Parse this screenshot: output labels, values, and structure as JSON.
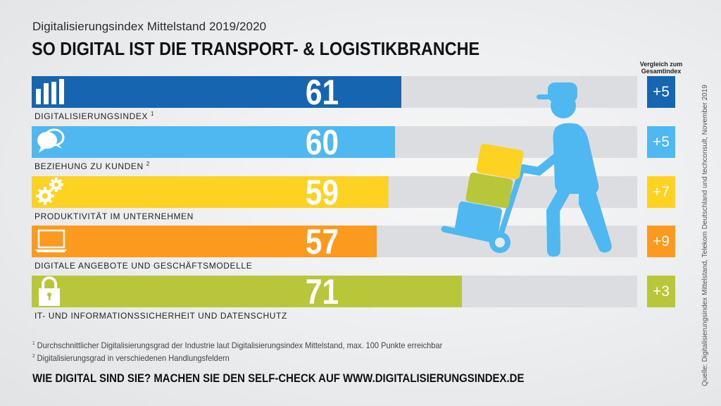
{
  "subtitle": "Digitalisierungsindex Mittelstand 2019/2020",
  "title": "SO DIGITAL IST DIE TRANSPORT- &  LOGISTIKBRANCHE",
  "comparison_header": "Vergleich zum Gesamtindex",
  "chart_data": {
    "type": "bar",
    "orientation": "horizontal",
    "xlim": [
      0,
      100
    ],
    "categories": [
      "DIGITALISIERUNGSINDEX",
      "BEZIEHUNG ZU KUNDEN",
      "PRODUKTIVITÄT IM UNTERNEHMEN",
      "DIGITALE ANGEBOTE UND GESCHÄFTSMODELLE",
      "IT- UND INFORMATIONSSICHERHEIT UND DATENSCHUTZ"
    ],
    "footnote_marks": [
      "1",
      "2",
      "",
      "",
      ""
    ],
    "values": [
      61,
      60,
      59,
      57,
      71
    ],
    "comparison": [
      "+5",
      "+5",
      "+7",
      "+9",
      "+3"
    ],
    "colors": [
      "#1565b0",
      "#4fb8f0",
      "#fdd223",
      "#fb9a1e",
      "#b8c73a"
    ],
    "icons": [
      "bar-chart-icon",
      "speech-bubbles-icon",
      "gears-icon",
      "laptop-icon",
      "padlock-icon"
    ],
    "track_color": "#dcdde0"
  },
  "footnotes": [
    {
      "mark": "1",
      "text": "Durchschnittlicher Digitalisierungsgrad der Industrie laut Digitalisierungsindex Mittelstand, max. 100 Punkte erreichbar"
    },
    {
      "mark": "2",
      "text": "Digitalisierungsgrad in verschiedenen Handlungsfeldern"
    }
  ],
  "cta": "WIE DIGITAL SIND SIE? MACHEN SIE DEN SELF-CHECK AUF WWW.DIGITALISIERUNGSINDEX.DE",
  "source": "Quelle: Digitalisierungsindex Mittelstand, Telekom Deutschland und techconsult, November 2019"
}
